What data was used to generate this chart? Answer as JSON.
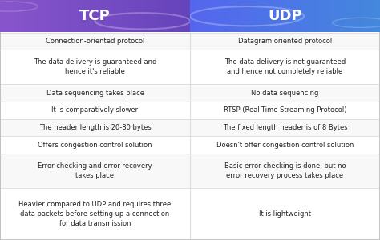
{
  "title_tcp": "TCP",
  "title_udp": "UDP",
  "header_bg_left_start": "#7B52C8",
  "header_bg_left_end": "#8B6BD8",
  "header_bg_right_start": "#5B6FE8",
  "header_bg_right_end": "#4A90E8",
  "header_text_color": "#FFFFFF",
  "row_bg_odd": "#F8F8F8",
  "row_bg_even": "#FFFFFF",
  "border_color": "#DDDDDD",
  "text_color": "#222222",
  "rows": [
    [
      "Connection-oriented protocol",
      "Datagram oriented protocol"
    ],
    [
      "The data delivery is guaranteed and\nhence it's reliable",
      "The data delivery is not guaranteed\nand hence not completely reliable"
    ],
    [
      "Data sequencing takes place",
      "No data sequencing"
    ],
    [
      "It is comparatively slower",
      "RTSP (Real-Time Streaming Protocol)"
    ],
    [
      "The header length is 20-80 bytes",
      "The fixed length header is of 8 Bytes"
    ],
    [
      "Offers congestion control solution",
      "Doesn't offer congestion control solution"
    ],
    [
      "Error checking and error recovery\ntakes place",
      "Basic error checking is done, but no\nerror recovery process takes place"
    ],
    [
      "Heavier compared to UDP and requires three\ndata packets before setting up a connection\nfor data transmission",
      "It is lightweight"
    ]
  ],
  "row_lines": [
    1,
    2,
    1,
    1,
    1,
    1,
    2,
    3
  ],
  "figsize": [
    4.74,
    3.0
  ],
  "dpi": 100
}
